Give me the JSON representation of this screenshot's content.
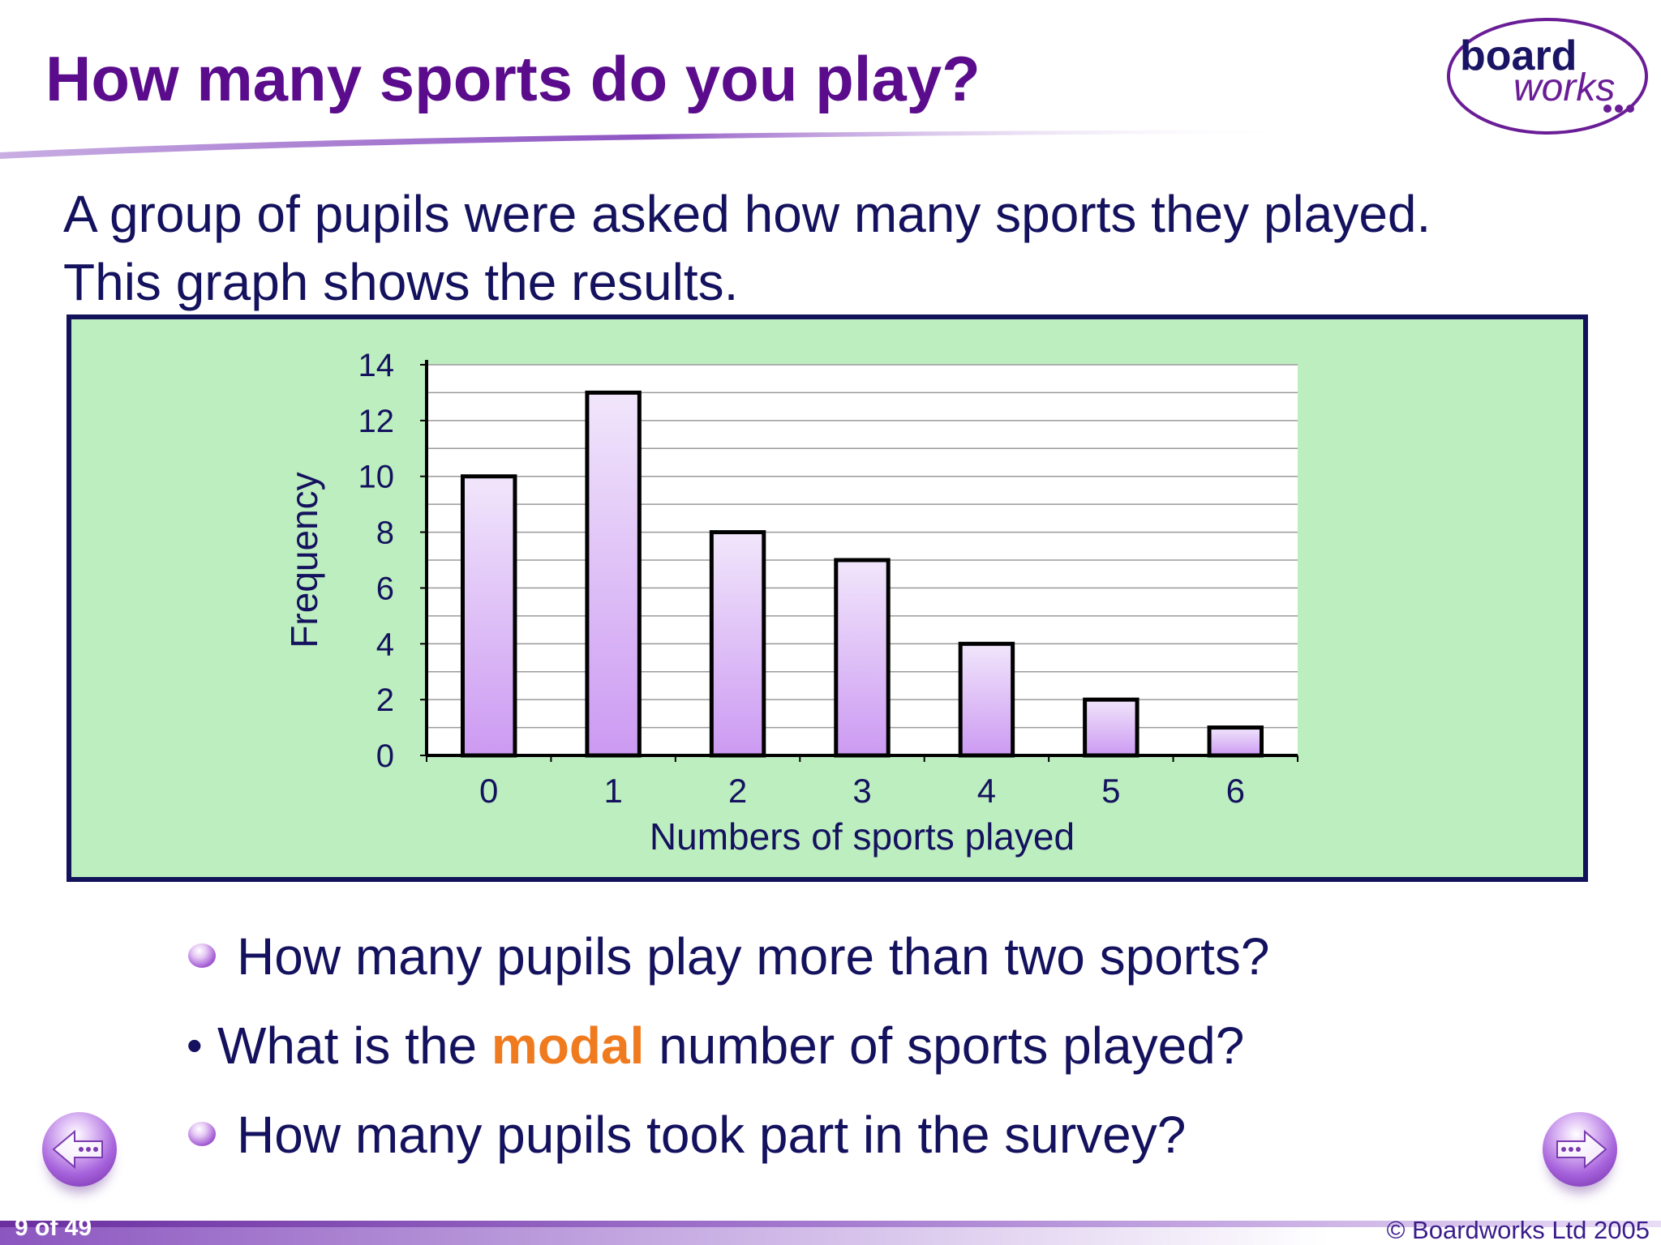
{
  "slide": {
    "title": "How many sports do you play?",
    "intro_line1": "A group of pupils were asked how many sports they played.",
    "intro_line2": "This graph shows the results."
  },
  "logo": {
    "line1": "board",
    "line2": "works"
  },
  "questions": [
    {
      "text": "How many pupils play more than two sports?"
    },
    {
      "before": "What is the ",
      "highlight": "modal",
      "after": " number of sports played?"
    },
    {
      "text": "How many pupils took part in the survey?"
    }
  ],
  "footer": {
    "page_counter": "9 of 49",
    "copyright": "© Boardworks Ltd 2005"
  },
  "colors": {
    "title": "#5a0c8c",
    "text": "#14125e",
    "highlight": "#f07a1e",
    "panel_bg": "#bdeebf",
    "panel_border": "#12125a",
    "bar_top": "#f1e6fb",
    "bar_bottom": "#cc9af2"
  },
  "icons": {
    "prev": "arrow-left-icon",
    "next": "arrow-right-icon"
  },
  "chart_data": {
    "type": "bar",
    "categories": [
      "0",
      "1",
      "2",
      "3",
      "4",
      "5",
      "6"
    ],
    "values": [
      10,
      13,
      8,
      7,
      4,
      2,
      1
    ],
    "xlabel": "Numbers of sports played",
    "ylabel": "Frequency",
    "ylim": [
      0,
      14
    ],
    "yticks": [
      0,
      2,
      4,
      6,
      8,
      10,
      12,
      14
    ],
    "grid": true,
    "legend": "none"
  }
}
